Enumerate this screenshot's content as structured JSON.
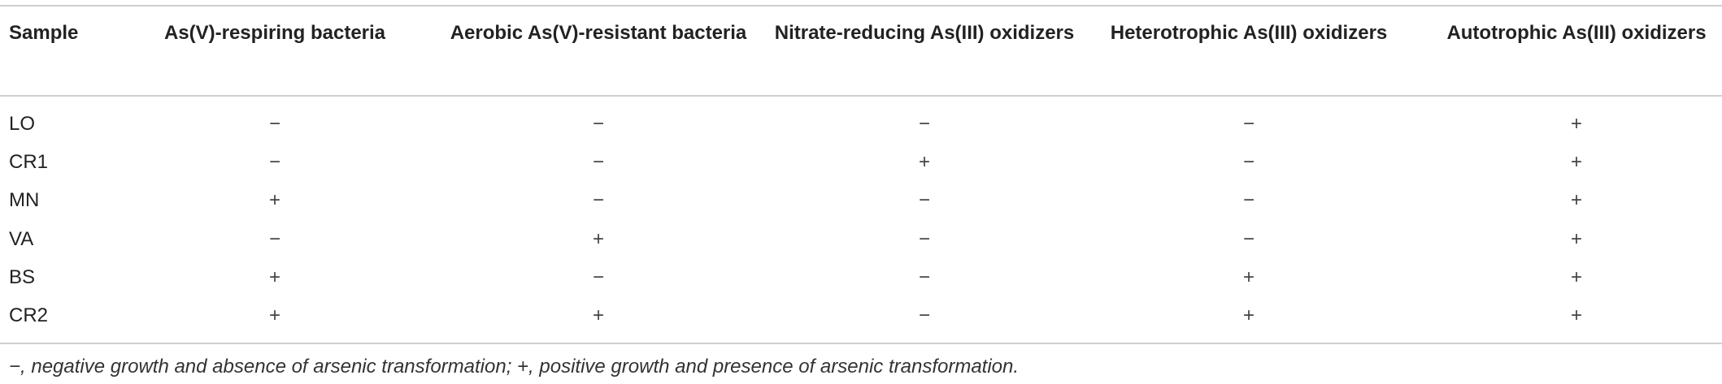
{
  "table": {
    "header": [
      "Sample",
      "As(V)-respiring bacteria",
      "Aerobic As(V)-resistant bacteria",
      "Nitrate-reducing As(III) oxidizers",
      "Heterotrophic As(III) oxidizers",
      "Autotrophic As(III) oxidizers"
    ],
    "rows": [
      [
        "LO",
        "−",
        "−",
        "−",
        "−",
        "+"
      ],
      [
        "CR1",
        "−",
        "−",
        "+",
        "−",
        "+"
      ],
      [
        "MN",
        "+",
        "−",
        "−",
        "−",
        "+"
      ],
      [
        "VA",
        "−",
        "+",
        "−",
        "−",
        "+"
      ],
      [
        "BS",
        "+",
        "−",
        "−",
        "+",
        "+"
      ],
      [
        "CR2",
        "+",
        "+",
        "−",
        "+",
        "+"
      ]
    ]
  },
  "footnote": "−, negative growth and absence of arsenic transformation; +, positive growth and presence of arsenic transformation."
}
